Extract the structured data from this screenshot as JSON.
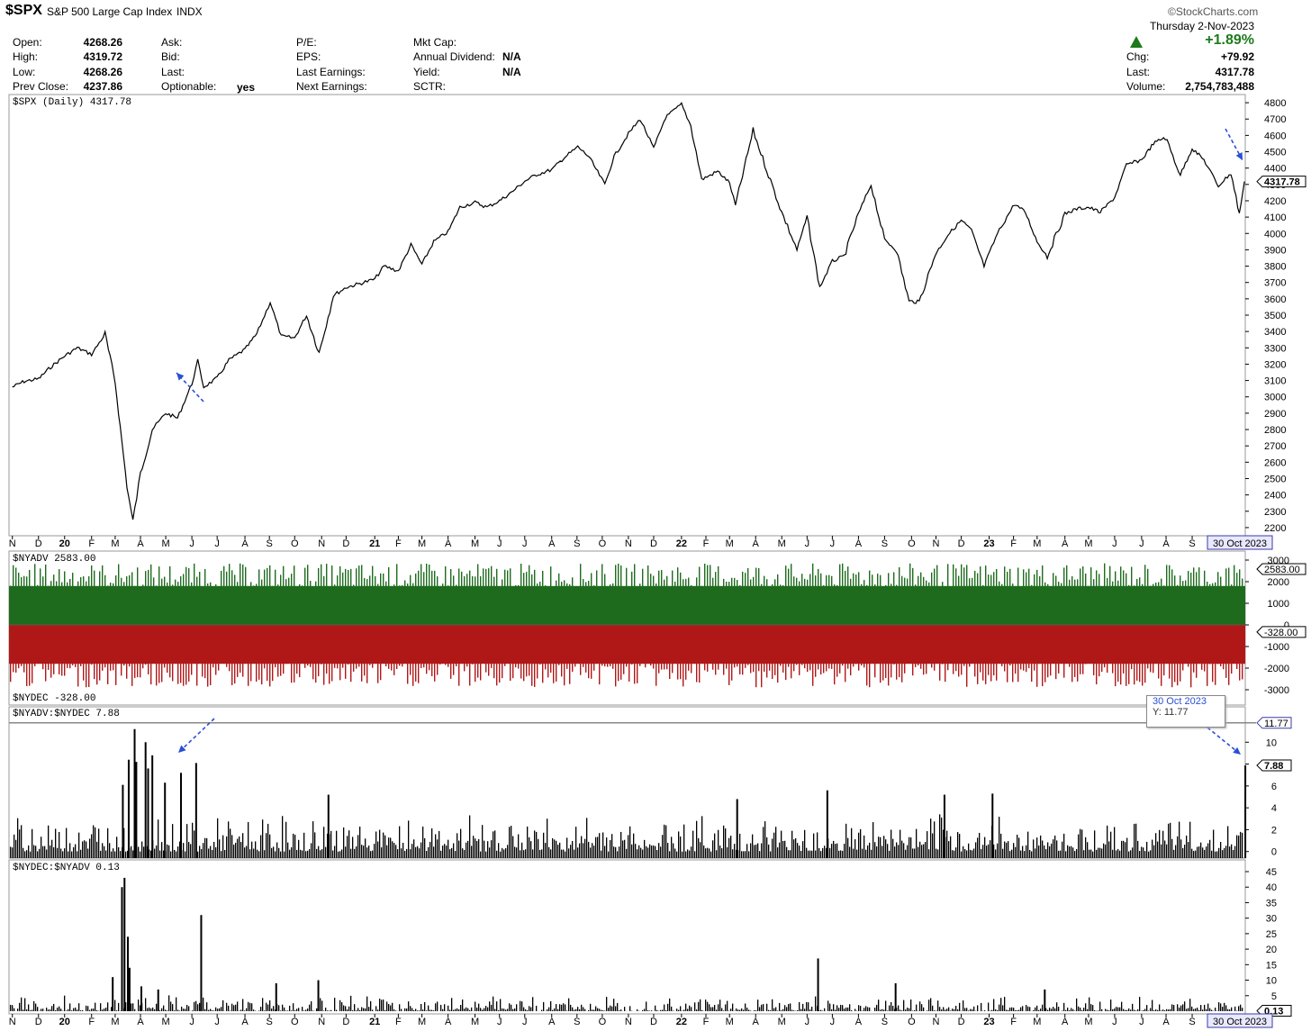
{
  "header": {
    "symbol": "$SPX",
    "name": "S&P 500 Large Cap Index",
    "exchange": "INDX",
    "brand": "©StockCharts.com",
    "date": "Thursday  2-Nov-2023",
    "change_pct": "+1.89%",
    "fields": {
      "open_label": "Open:",
      "open": "4268.26",
      "high_label": "High:",
      "high": "4319.72",
      "low_label": "Low:",
      "low": "4268.26",
      "prev_label": "Prev Close:",
      "prev": "4237.86",
      "ask_label": "Ask:",
      "bid_label": "Bid:",
      "last_label2": "Last:",
      "optionable_label": "Optionable:",
      "optionable": "yes",
      "pe_label": "P/E:",
      "eps_label": "EPS:",
      "last_earnings_label": "Last Earnings:",
      "next_earnings_label": "Next Earnings:",
      "mktcap_label": "Mkt Cap:",
      "annual_div_label": "Annual Dividend:",
      "annual_div": "N/A",
      "yield_label": "Yield:",
      "yield": "N/A",
      "sctr_label": "SCTR:",
      "chg_label": "Chg:",
      "chg": "+79.92",
      "last_label": "Last:",
      "last": "4317.78",
      "volume_label": "Volume:",
      "volume": "2,754,783,488"
    }
  },
  "colors": {
    "up": "#1e6b1e",
    "down": "#b01818",
    "marker_arrow": "#2a4fd6",
    "badge": "#3a3aa8"
  },
  "tooltip": {
    "date": "30 Oct 2023",
    "y": "Y: 11.77"
  },
  "chart_data": [
    {
      "type": "line",
      "title": "$SPX (Daily) 4317.78",
      "last_value_badge": "4317.78",
      "ylim": [
        2150,
        4850
      ],
      "yticks": [
        2200,
        2300,
        2400,
        2500,
        2600,
        2700,
        2800,
        2900,
        3000,
        3100,
        3200,
        3300,
        3400,
        3500,
        3600,
        3700,
        3800,
        3900,
        4000,
        4100,
        4200,
        4300,
        4400,
        4500,
        4600,
        4700,
        4800
      ],
      "x": [
        "2019-11-01",
        "2019-11-15",
        "2019-12-02",
        "2019-12-16",
        "2020-01-02",
        "2020-01-17",
        "2020-02-03",
        "2020-02-19",
        "2020-03-02",
        "2020-03-16",
        "2020-03-23",
        "2020-04-01",
        "2020-04-15",
        "2020-05-01",
        "2020-05-15",
        "2020-06-01",
        "2020-06-08",
        "2020-06-15",
        "2020-07-01",
        "2020-07-15",
        "2020-08-03",
        "2020-08-17",
        "2020-09-02",
        "2020-09-15",
        "2020-10-01",
        "2020-10-15",
        "2020-10-30",
        "2020-11-16",
        "2020-12-01",
        "2020-12-15",
        "2021-01-04",
        "2021-01-15",
        "2021-02-01",
        "2021-02-16",
        "2021-03-01",
        "2021-03-15",
        "2021-04-01",
        "2021-04-15",
        "2021-05-03",
        "2021-05-17",
        "2021-06-01",
        "2021-06-15",
        "2021-07-01",
        "2021-07-15",
        "2021-08-02",
        "2021-08-16",
        "2021-09-02",
        "2021-09-15",
        "2021-10-04",
        "2021-10-15",
        "2021-11-01",
        "2021-11-15",
        "2021-12-01",
        "2021-12-15",
        "2022-01-03",
        "2022-01-14",
        "2022-01-27",
        "2022-02-15",
        "2022-03-01",
        "2022-03-08",
        "2022-03-29",
        "2022-04-14",
        "2022-05-02",
        "2022-05-20",
        "2022-06-01",
        "2022-06-16",
        "2022-07-01",
        "2022-07-15",
        "2022-08-01",
        "2022-08-16",
        "2022-09-01",
        "2022-09-15",
        "2022-09-30",
        "2022-10-12",
        "2022-10-31",
        "2022-11-15",
        "2022-12-01",
        "2022-12-13",
        "2022-12-28",
        "2023-01-13",
        "2023-02-02",
        "2023-02-15",
        "2023-03-01",
        "2023-03-13",
        "2023-04-03",
        "2023-04-17",
        "2023-05-01",
        "2023-05-15",
        "2023-06-01",
        "2023-06-15",
        "2023-07-03",
        "2023-07-17",
        "2023-07-31",
        "2023-08-18",
        "2023-09-01",
        "2023-09-15",
        "2023-10-02",
        "2023-10-17",
        "2023-10-27",
        "2023-11-02"
      ],
      "values": [
        3060,
        3095,
        3110,
        3180,
        3250,
        3300,
        3260,
        3385,
        3090,
        2450,
        2240,
        2530,
        2800,
        2900,
        2870,
        3080,
        3220,
        3060,
        3115,
        3225,
        3290,
        3385,
        3580,
        3370,
        3360,
        3500,
        3270,
        3620,
        3670,
        3690,
        3720,
        3800,
        3770,
        3930,
        3810,
        3950,
        4010,
        4160,
        4190,
        4160,
        4200,
        4250,
        4320,
        4360,
        4390,
        4460,
        4530,
        4470,
        4300,
        4470,
        4610,
        4700,
        4520,
        4710,
        4790,
        4660,
        4330,
        4380,
        4310,
        4170,
        4630,
        4390,
        4130,
        3900,
        4100,
        3670,
        3830,
        3860,
        4120,
        4300,
        3960,
        3900,
        3585,
        3580,
        3870,
        3990,
        4080,
        4020,
        3800,
        4000,
        4180,
        4130,
        3950,
        3860,
        4120,
        4150,
        4160,
        4130,
        4220,
        4420,
        4450,
        4550,
        4590,
        4360,
        4520,
        4450,
        4290,
        4370,
        4120,
        4318
      ]
    },
    {
      "type": "bar",
      "title": "$NYADV 2583.00",
      "lower_title": "$NYDEC -328.00",
      "ylim": [
        -3000,
        3000
      ],
      "yticks": [
        3000,
        2000,
        1000,
        0,
        -1000,
        -2000,
        -3000
      ],
      "badges": [
        "2583.00",
        "-328.00"
      ],
      "series": [
        {
          "name": "$NYADV",
          "last": 2583
        },
        {
          "name": "$NYDEC",
          "last": -328
        }
      ]
    },
    {
      "type": "bar",
      "title": "$NYADV:$NYDEC 7.88",
      "ylim": [
        -0.6,
        12
      ],
      "yticks": [
        10,
        8,
        6,
        4,
        2,
        0
      ],
      "badges": [
        "11.77",
        "7.88"
      ],
      "spikes": [
        {
          "date": "2020-03-10",
          "value": 6.1
        },
        {
          "date": "2020-03-17",
          "value": 8.4
        },
        {
          "date": "2020-03-24",
          "value": 11.2
        },
        {
          "date": "2020-03-26",
          "value": 8.2
        },
        {
          "date": "2020-04-06",
          "value": 10.0
        },
        {
          "date": "2020-04-09",
          "value": 7.6
        },
        {
          "date": "2020-04-14",
          "value": 8.8
        },
        {
          "date": "2020-04-29",
          "value": 6.3
        },
        {
          "date": "2020-05-18",
          "value": 7.2
        },
        {
          "date": "2020-06-05",
          "value": 8.1
        },
        {
          "date": "2020-11-09",
          "value": 5.2
        },
        {
          "date": "2022-03-09",
          "value": 4.8
        },
        {
          "date": "2022-06-24",
          "value": 5.6
        },
        {
          "date": "2022-11-10",
          "value": 5.2
        },
        {
          "date": "2023-01-06",
          "value": 5.3
        },
        {
          "date": "2023-11-02",
          "value": 7.88
        }
      ]
    },
    {
      "type": "bar",
      "title": "$NYDEC:$NYADV 0.13",
      "ylim": [
        0,
        45
      ],
      "yticks": [
        45,
        40,
        35,
        30,
        25,
        20,
        15,
        10,
        5
      ],
      "badges": [
        "0.13"
      ],
      "spikes": [
        {
          "date": "2020-02-27",
          "value": 11.0
        },
        {
          "date": "2020-03-09",
          "value": 40.0
        },
        {
          "date": "2020-03-12",
          "value": 43.0
        },
        {
          "date": "2020-03-16",
          "value": 24.0
        },
        {
          "date": "2020-03-18",
          "value": 14.0
        },
        {
          "date": "2020-04-01",
          "value": 8.0
        },
        {
          "date": "2020-04-21",
          "value": 7.0
        },
        {
          "date": "2020-06-11",
          "value": 31.0
        },
        {
          "date": "2020-09-08",
          "value": 9.0
        },
        {
          "date": "2020-10-28",
          "value": 10.0
        },
        {
          "date": "2022-06-13",
          "value": 17.0
        },
        {
          "date": "2022-09-13",
          "value": 9.0
        },
        {
          "date": "2023-03-09",
          "value": 7.0
        }
      ]
    }
  ],
  "xaxis": {
    "labels": [
      {
        "t": "N",
        "d": "2019-11-01"
      },
      {
        "t": "D",
        "d": "2019-12-02"
      },
      {
        "t": "20",
        "d": "2020-01-02",
        "bold": true
      },
      {
        "t": "F",
        "d": "2020-02-03"
      },
      {
        "t": "M",
        "d": "2020-03-02"
      },
      {
        "t": "A",
        "d": "2020-04-01"
      },
      {
        "t": "M",
        "d": "2020-05-01"
      },
      {
        "t": "J",
        "d": "2020-06-01"
      },
      {
        "t": "J",
        "d": "2020-07-01"
      },
      {
        "t": "A",
        "d": "2020-08-03"
      },
      {
        "t": "S",
        "d": "2020-09-01"
      },
      {
        "t": "O",
        "d": "2020-10-01"
      },
      {
        "t": "N",
        "d": "2020-11-02"
      },
      {
        "t": "D",
        "d": "2020-12-01"
      },
      {
        "t": "21",
        "d": "2021-01-04",
        "bold": true
      },
      {
        "t": "F",
        "d": "2021-02-01"
      },
      {
        "t": "M",
        "d": "2021-03-01"
      },
      {
        "t": "A",
        "d": "2021-04-01"
      },
      {
        "t": "M",
        "d": "2021-05-03"
      },
      {
        "t": "J",
        "d": "2021-06-01"
      },
      {
        "t": "J",
        "d": "2021-07-01"
      },
      {
        "t": "A",
        "d": "2021-08-02"
      },
      {
        "t": "S",
        "d": "2021-09-01"
      },
      {
        "t": "O",
        "d": "2021-10-01"
      },
      {
        "t": "N",
        "d": "2021-11-01"
      },
      {
        "t": "D",
        "d": "2021-12-01"
      },
      {
        "t": "22",
        "d": "2022-01-03",
        "bold": true
      },
      {
        "t": "F",
        "d": "2022-02-01"
      },
      {
        "t": "M",
        "d": "2022-03-01"
      },
      {
        "t": "A",
        "d": "2022-04-01"
      },
      {
        "t": "M",
        "d": "2022-05-02"
      },
      {
        "t": "J",
        "d": "2022-06-01"
      },
      {
        "t": "J",
        "d": "2022-07-01"
      },
      {
        "t": "A",
        "d": "2022-08-01"
      },
      {
        "t": "S",
        "d": "2022-09-01"
      },
      {
        "t": "O",
        "d": "2022-10-03"
      },
      {
        "t": "N",
        "d": "2022-11-01"
      },
      {
        "t": "D",
        "d": "2022-12-01"
      },
      {
        "t": "23",
        "d": "2023-01-03",
        "bold": true
      },
      {
        "t": "F",
        "d": "2023-02-01"
      },
      {
        "t": "M",
        "d": "2023-03-01"
      },
      {
        "t": "A",
        "d": "2023-04-03"
      },
      {
        "t": "M",
        "d": "2023-05-01"
      },
      {
        "t": "J",
        "d": "2023-06-01"
      },
      {
        "t": "J",
        "d": "2023-07-03"
      },
      {
        "t": "A",
        "d": "2023-08-01"
      },
      {
        "t": "S",
        "d": "2023-09-01"
      }
    ],
    "end_badge": "30 Oct 2023"
  }
}
